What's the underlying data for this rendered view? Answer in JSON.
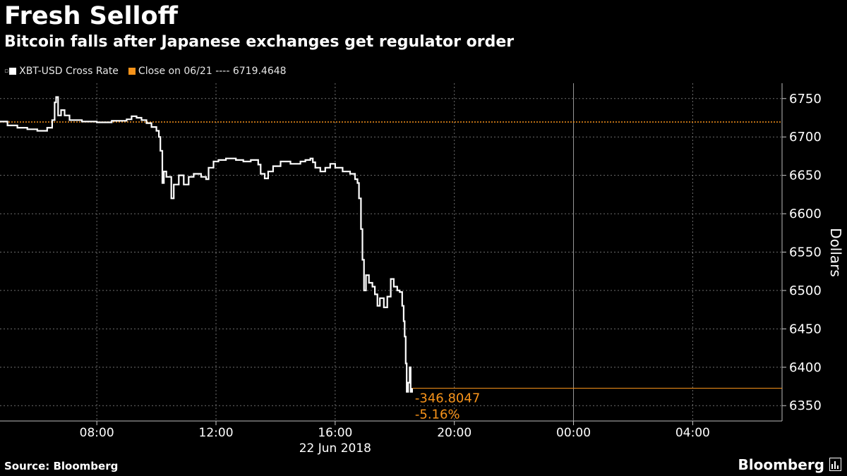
{
  "header": {
    "title": "Fresh Selloff",
    "subtitle": "Bitcoin falls after Japanese exchanges get regulator order"
  },
  "legend": {
    "series_label": "XBT-USD Cross Rate",
    "close_label": "Close on 06/21 ---- 6719.4648"
  },
  "footer": {
    "source": "Source: Bloomberg",
    "brand": "Bloomberg"
  },
  "colors": {
    "background": "#000000",
    "series": "#ffffff",
    "close_line": "#f7931a",
    "annotation": "#f7931a",
    "grid": "#6e6e6e"
  },
  "chart_data": {
    "type": "line",
    "title": "Fresh Selloff",
    "subtitle": "Bitcoin falls after Japanese exchanges get regulator order",
    "ylabel": "Dollars",
    "xlabel": "22 Jun 2018",
    "ylim": [
      6330,
      6770
    ],
    "xlim": [
      "06/22 04:45",
      "06/23 07:00"
    ],
    "y_ticks": [
      6350,
      6400,
      6450,
      6500,
      6550,
      6600,
      6650,
      6700,
      6750
    ],
    "x_ticks": [
      "08:00",
      "12:00",
      "16:00",
      "20:00",
      "00:00",
      "04:00"
    ],
    "x_tick_label_date": "22 Jun 2018",
    "y_axis_position": "right",
    "grid": true,
    "reference_line": {
      "label": "Close on 06/21",
      "value": 6719.4648
    },
    "last_value": 6372.66,
    "annotations": [
      "-346.8047",
      "-5.16%"
    ],
    "series": [
      {
        "name": "XBT-USD Cross Rate",
        "points": [
          [
            "04:45",
            6720
          ],
          [
            "05:00",
            6715
          ],
          [
            "05:20",
            6712
          ],
          [
            "05:40",
            6710
          ],
          [
            "06:00",
            6708
          ],
          [
            "06:20",
            6712
          ],
          [
            "06:30",
            6722
          ],
          [
            "06:35",
            6745
          ],
          [
            "06:38",
            6752
          ],
          [
            "06:42",
            6728
          ],
          [
            "06:48",
            6735
          ],
          [
            "06:55",
            6728
          ],
          [
            "07:05",
            6722
          ],
          [
            "07:30",
            6720
          ],
          [
            "08:00",
            6719
          ],
          [
            "08:30",
            6721
          ],
          [
            "09:00",
            6723
          ],
          [
            "09:10",
            6727
          ],
          [
            "09:20",
            6725
          ],
          [
            "09:30",
            6722
          ],
          [
            "09:40",
            6718
          ],
          [
            "09:50",
            6713
          ],
          [
            "10:00",
            6708
          ],
          [
            "10:05",
            6700
          ],
          [
            "10:08",
            6682
          ],
          [
            "10:12",
            6640
          ],
          [
            "10:15",
            6655
          ],
          [
            "10:20",
            6648
          ],
          [
            "10:30",
            6620
          ],
          [
            "10:35",
            6638
          ],
          [
            "10:45",
            6650
          ],
          [
            "10:55",
            6638
          ],
          [
            "11:05",
            6648
          ],
          [
            "11:15",
            6652
          ],
          [
            "11:30",
            6648
          ],
          [
            "11:40",
            6645
          ],
          [
            "11:45",
            6660
          ],
          [
            "11:55",
            6668
          ],
          [
            "12:05",
            6670
          ],
          [
            "12:20",
            6672
          ],
          [
            "12:40",
            6670
          ],
          [
            "12:55",
            6668
          ],
          [
            "13:10",
            6670
          ],
          [
            "13:25",
            6664
          ],
          [
            "13:30",
            6652
          ],
          [
            "13:38",
            6646
          ],
          [
            "13:45",
            6655
          ],
          [
            "13:55",
            6662
          ],
          [
            "14:10",
            6668
          ],
          [
            "14:30",
            6665
          ],
          [
            "14:50",
            6668
          ],
          [
            "15:00",
            6670
          ],
          [
            "15:10",
            6672
          ],
          [
            "15:15",
            6667
          ],
          [
            "15:20",
            6660
          ],
          [
            "15:30",
            6655
          ],
          [
            "15:40",
            6660
          ],
          [
            "15:50",
            6665
          ],
          [
            "16:00",
            6660
          ],
          [
            "16:15",
            6655
          ],
          [
            "16:30",
            6652
          ],
          [
            "16:40",
            6645
          ],
          [
            "16:45",
            6640
          ],
          [
            "16:48",
            6620
          ],
          [
            "16:52",
            6580
          ],
          [
            "16:55",
            6540
          ],
          [
            "16:58",
            6500
          ],
          [
            "17:02",
            6520
          ],
          [
            "17:08",
            6510
          ],
          [
            "17:15",
            6505
          ],
          [
            "17:20",
            6495
          ],
          [
            "17:25",
            6480
          ],
          [
            "17:30",
            6490
          ],
          [
            "17:38",
            6478
          ],
          [
            "17:45",
            6492
          ],
          [
            "17:52",
            6515
          ],
          [
            "17:58",
            6505
          ],
          [
            "18:05",
            6500
          ],
          [
            "18:10",
            6498
          ],
          [
            "18:15",
            6480
          ],
          [
            "18:18",
            6460
          ],
          [
            "18:20",
            6440
          ],
          [
            "18:22",
            6405
          ],
          [
            "18:24",
            6368
          ],
          [
            "18:27",
            6380
          ],
          [
            "18:30",
            6400
          ],
          [
            "18:32",
            6368
          ],
          [
            "18:35",
            6373
          ]
        ]
      }
    ]
  }
}
